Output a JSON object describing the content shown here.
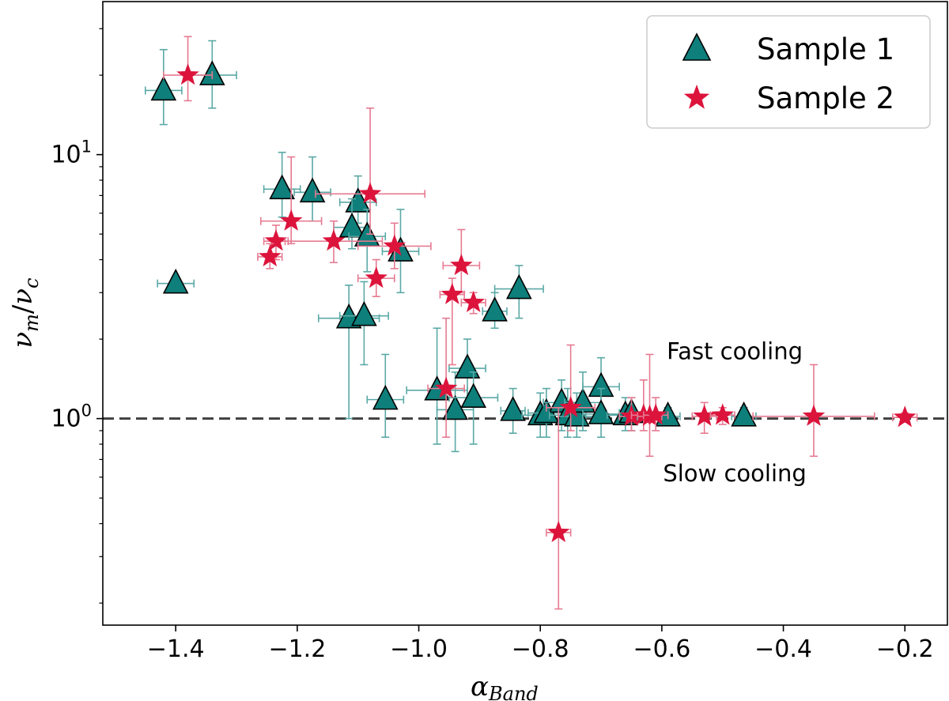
{
  "chart_data": {
    "type": "scatter",
    "title": "",
    "xlabel": "α",
    "xlabel_sub": "Band",
    "ylabel_parts": [
      "ν",
      "m",
      "/",
      "ν",
      "c"
    ],
    "xlim": [
      -1.52,
      -0.13
    ],
    "ylim": [
      0.165,
      38
    ],
    "yscale": "log",
    "grid": false,
    "x_ticks": [
      -1.4,
      -1.2,
      -1.0,
      -0.8,
      -0.6,
      -0.4,
      -0.2
    ],
    "x_tick_labels": [
      "−1.4",
      "−1.2",
      "−1.0",
      "−0.8",
      "−0.6",
      "−0.4",
      "−0.2"
    ],
    "y_ticks": [
      1,
      10
    ],
    "y_tick_labels": [
      {
        "base": "10",
        "exp": "0"
      },
      {
        "base": "10",
        "exp": "1"
      }
    ],
    "reference_line": {
      "y": 1.0,
      "style": "dashed",
      "color": "#404040"
    },
    "annotations": [
      {
        "text": "Fast cooling",
        "x": -0.48,
        "y": 1.8
      },
      {
        "text": "Slow cooling",
        "x": -0.48,
        "y": 0.62
      }
    ],
    "legend": {
      "placement": "top-right"
    },
    "series": [
      {
        "name": "Sample 1",
        "marker": "triangle",
        "color": "#0e7f7b",
        "error_color": "#5aa9a6",
        "points": [
          {
            "x": -1.42,
            "y": 17.5,
            "xerr": 0.03,
            "ylo": 13.0,
            "yhi": 25.0
          },
          {
            "x": -1.34,
            "y": 20.0,
            "xerr": 0.04,
            "ylo": 15.0,
            "yhi": 27.0
          },
          {
            "x": -1.4,
            "y": 3.25,
            "xerr": 0.03,
            "ylo": 3.1,
            "yhi": 3.45
          },
          {
            "x": -1.225,
            "y": 7.4,
            "xerr": 0.03,
            "ylo": 5.8,
            "yhi": 10.2
          },
          {
            "x": -1.175,
            "y": 7.2,
            "xerr": 0.03,
            "ylo": 5.6,
            "yhi": 9.8
          },
          {
            "x": -1.1,
            "y": 6.6,
            "xerr": 0.03,
            "ylo": 5.5,
            "yhi": 8.3
          },
          {
            "x": -1.11,
            "y": 5.3,
            "xerr": 0.03,
            "ylo": 4.4,
            "yhi": 6.8
          },
          {
            "x": -1.085,
            "y": 4.9,
            "xerr": 0.03,
            "ylo": 3.6,
            "yhi": 6.2
          },
          {
            "x": -1.03,
            "y": 4.3,
            "xerr": 0.03,
            "ylo": 3.0,
            "yhi": 6.2
          },
          {
            "x": -1.115,
            "y": 2.4,
            "xerr": 0.05,
            "ylo": 1.0,
            "yhi": 3.2
          },
          {
            "x": -1.09,
            "y": 2.45,
            "xerr": 0.04,
            "ylo": 1.6,
            "yhi": 3.3
          },
          {
            "x": -0.875,
            "y": 2.55,
            "xerr": 0.02,
            "ylo": 2.2,
            "yhi": 3.0
          },
          {
            "x": -0.835,
            "y": 3.1,
            "xerr": 0.04,
            "ylo": 2.4,
            "yhi": 3.8
          },
          {
            "x": -1.055,
            "y": 1.18,
            "xerr": 0.03,
            "ylo": 0.85,
            "yhi": 1.75
          },
          {
            "x": -0.97,
            "y": 1.28,
            "xerr": 0.05,
            "ylo": 0.8,
            "yhi": 2.2
          },
          {
            "x": -0.94,
            "y": 1.08,
            "xerr": 0.03,
            "ylo": 0.75,
            "yhi": 1.5
          },
          {
            "x": -0.92,
            "y": 1.55,
            "xerr": 0.03,
            "ylo": 1.2,
            "yhi": 2.0
          },
          {
            "x": -0.91,
            "y": 1.2,
            "xerr": 0.04,
            "ylo": 0.8,
            "yhi": 1.5
          },
          {
            "x": -0.845,
            "y": 1.07,
            "xerr": 0.02,
            "ylo": 0.88,
            "yhi": 1.3
          },
          {
            "x": -0.8,
            "y": 1.03,
            "xerr": 0.03,
            "ylo": 0.85,
            "yhi": 1.25
          },
          {
            "x": -0.79,
            "y": 1.05,
            "xerr": 0.03,
            "ylo": 0.85,
            "yhi": 1.3
          },
          {
            "x": -0.765,
            "y": 1.15,
            "xerr": 0.03,
            "ylo": 0.9,
            "yhi": 1.4
          },
          {
            "x": -0.755,
            "y": 1.03,
            "xerr": 0.03,
            "ylo": 0.85,
            "yhi": 1.3
          },
          {
            "x": -0.74,
            "y": 1.02,
            "xerr": 0.03,
            "ylo": 0.85,
            "yhi": 1.25
          },
          {
            "x": -0.73,
            "y": 1.15,
            "xerr": 0.03,
            "ylo": 0.9,
            "yhi": 1.5
          },
          {
            "x": -0.7,
            "y": 1.32,
            "xerr": 0.03,
            "ylo": 1.0,
            "yhi": 1.7
          },
          {
            "x": -0.7,
            "y": 1.04,
            "xerr": 0.03,
            "ylo": 0.85,
            "yhi": 1.3
          },
          {
            "x": -0.66,
            "y": 1.03,
            "xerr": 0.03,
            "ylo": 0.9,
            "yhi": 1.2
          },
          {
            "x": -0.65,
            "y": 1.05,
            "xerr": 0.02,
            "ylo": 0.9,
            "yhi": 1.2
          },
          {
            "x": -0.59,
            "y": 1.02,
            "xerr": 0.02,
            "ylo": 0.95,
            "yhi": 1.1
          },
          {
            "x": -0.465,
            "y": 1.02,
            "xerr": 0.02,
            "ylo": 0.95,
            "yhi": 1.1
          }
        ]
      },
      {
        "name": "Sample 2",
        "marker": "star",
        "color": "#dc143c",
        "error_color": "#e67a91",
        "points": [
          {
            "x": -1.38,
            "y": 20.0,
            "xerr": 0.04,
            "ylo": 16.0,
            "yhi": 28.0
          },
          {
            "x": -1.08,
            "y": 7.1,
            "xerr": 0.09,
            "ylo": 5.0,
            "yhi": 15.0
          },
          {
            "x": -1.21,
            "y": 5.6,
            "xerr": 0.05,
            "ylo": 4.6,
            "yhi": 9.8
          },
          {
            "x": -1.235,
            "y": 4.7,
            "xerr": 0.02,
            "ylo": 4.0,
            "yhi": 5.4
          },
          {
            "x": -1.245,
            "y": 4.1,
            "xerr": 0.02,
            "ylo": 3.7,
            "yhi": 4.6
          },
          {
            "x": -1.14,
            "y": 4.7,
            "xerr": 0.08,
            "ylo": 3.9,
            "yhi": 5.6
          },
          {
            "x": -1.07,
            "y": 3.4,
            "xerr": 0.03,
            "ylo": 2.9,
            "yhi": 4.0
          },
          {
            "x": -1.04,
            "y": 4.5,
            "xerr": 0.06,
            "ylo": 3.7,
            "yhi": 5.5
          },
          {
            "x": -0.93,
            "y": 3.8,
            "xerr": 0.03,
            "ylo": 3.0,
            "yhi": 5.2
          },
          {
            "x": -0.945,
            "y": 2.95,
            "xerr": 0.02,
            "ylo": 1.6,
            "yhi": 3.4
          },
          {
            "x": -0.91,
            "y": 2.75,
            "xerr": 0.02,
            "ylo": 2.5,
            "yhi": 3.0
          },
          {
            "x": -0.955,
            "y": 1.3,
            "xerr": 0.03,
            "ylo": 0.85,
            "yhi": 2.4
          },
          {
            "x": -0.77,
            "y": 0.37,
            "xerr": 0.02,
            "ylo": 0.19,
            "yhi": 1.1
          },
          {
            "x": -0.75,
            "y": 1.1,
            "xerr": 0.04,
            "ylo": 0.9,
            "yhi": 1.9
          },
          {
            "x": -0.65,
            "y": 1.02,
            "xerr": 0.02,
            "ylo": 0.9,
            "yhi": 1.2
          },
          {
            "x": -0.63,
            "y": 1.03,
            "xerr": 0.02,
            "ylo": 0.9,
            "yhi": 1.4
          },
          {
            "x": -0.62,
            "y": 1.02,
            "xerr": 0.02,
            "ylo": 0.72,
            "yhi": 1.75
          },
          {
            "x": -0.61,
            "y": 1.03,
            "xerr": 0.02,
            "ylo": 0.9,
            "yhi": 1.2
          },
          {
            "x": -0.53,
            "y": 1.02,
            "xerr": 0.02,
            "ylo": 0.88,
            "yhi": 1.15
          },
          {
            "x": -0.5,
            "y": 1.03,
            "xerr": 0.02,
            "ylo": 0.95,
            "yhi": 1.1
          },
          {
            "x": -0.35,
            "y": 1.02,
            "xerr": 0.1,
            "ylo": 0.72,
            "yhi": 1.6
          },
          {
            "x": -0.2,
            "y": 1.01,
            "xerr": 0.02,
            "ylo": 0.97,
            "yhi": 1.05
          }
        ]
      }
    ]
  }
}
